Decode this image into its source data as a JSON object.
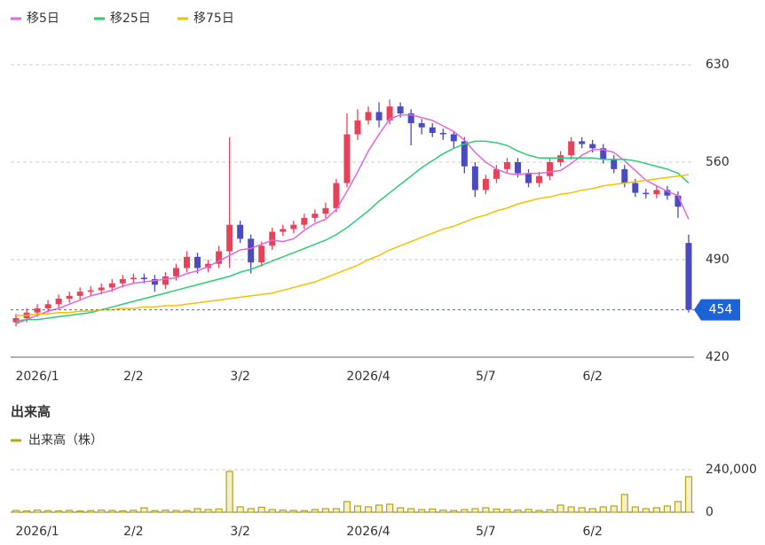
{
  "chart_data": [
    {
      "type": "candlestick",
      "categories": [
        null,
        null,
        "2026/1",
        null,
        null,
        null,
        null,
        null,
        null,
        null,
        null,
        "2/2",
        null,
        null,
        null,
        null,
        null,
        null,
        null,
        null,
        null,
        "3/2",
        null,
        null,
        null,
        null,
        null,
        null,
        null,
        null,
        null,
        null,
        null,
        "2026/4",
        null,
        null,
        null,
        null,
        null,
        null,
        null,
        null,
        null,
        null,
        "5/7",
        null,
        null,
        null,
        null,
        null,
        null,
        null,
        null,
        null,
        "6/2",
        null,
        null,
        null,
        null,
        null,
        null,
        null,
        null,
        null
      ],
      "open": [
        445,
        448,
        452,
        455,
        458,
        462,
        464,
        467,
        468,
        470,
        473,
        476,
        477,
        476,
        472,
        478,
        484,
        492,
        484,
        487,
        496,
        515,
        505,
        488,
        500,
        510,
        512,
        515,
        520,
        523,
        527,
        545,
        580,
        590,
        596,
        590,
        600,
        595,
        588,
        585,
        581,
        580,
        575,
        557,
        540,
        548,
        555,
        560,
        552,
        545,
        550,
        560,
        565,
        575,
        573,
        570,
        562,
        555,
        545,
        538,
        537,
        540,
        536,
        502
      ],
      "high": [
        451,
        455,
        458,
        461,
        465,
        467,
        470,
        471,
        473,
        476,
        479,
        480,
        480,
        479,
        481,
        487,
        496,
        495,
        490,
        500,
        578,
        518,
        508,
        503,
        513,
        515,
        518,
        523,
        526,
        531,
        548,
        595,
        598,
        600,
        603,
        605,
        603,
        598,
        591,
        588,
        584,
        582,
        578,
        560,
        551,
        558,
        563,
        563,
        555,
        553,
        563,
        568,
        578,
        578,
        576,
        573,
        565,
        558,
        548,
        541,
        543,
        543,
        539,
        508
      ],
      "low": [
        442,
        445,
        449,
        452,
        455,
        459,
        461,
        464,
        465,
        467,
        470,
        473,
        473,
        467,
        469,
        475,
        481,
        480,
        481,
        484,
        484,
        502,
        480,
        485,
        497,
        507,
        509,
        512,
        517,
        520,
        524,
        542,
        576,
        587,
        585,
        587,
        592,
        572,
        580,
        578,
        576,
        570,
        552,
        535,
        537,
        545,
        552,
        549,
        542,
        542,
        547,
        557,
        562,
        570,
        567,
        559,
        552,
        542,
        535,
        534,
        534,
        533,
        520,
        452
      ],
      "close": [
        448,
        452,
        455,
        458,
        462,
        464,
        467,
        468,
        470,
        473,
        476,
        477,
        476,
        472,
        478,
        484,
        492,
        484,
        487,
        496,
        515,
        505,
        488,
        500,
        510,
        512,
        515,
        520,
        523,
        527,
        545,
        580,
        590,
        596,
        590,
        600,
        595,
        588,
        585,
        581,
        580,
        575,
        557,
        540,
        548,
        555,
        560,
        552,
        545,
        550,
        560,
        565,
        575,
        573,
        570,
        562,
        555,
        545,
        538,
        537,
        540,
        536,
        528,
        454
      ],
      "up_color": "#e8425a",
      "down_color": "#4b4bc0",
      "series": [
        {
          "name": "移5日",
          "color": "#e066e0",
          "values": [
            444,
            447,
            450,
            453,
            455,
            458,
            461,
            464,
            466,
            468,
            471,
            473,
            474,
            475,
            476,
            477,
            480,
            482,
            485,
            489,
            493,
            497,
            498,
            501,
            504,
            503,
            505,
            511,
            516,
            519,
            526,
            539,
            553,
            568,
            580,
            591,
            594,
            594,
            592,
            590,
            586,
            582,
            576,
            567,
            560,
            555,
            552,
            551,
            552,
            552,
            553,
            554,
            559,
            565,
            569,
            569,
            567,
            561,
            554,
            547,
            543,
            539,
            536,
            519
          ]
        },
        {
          "name": "移25日",
          "color": "#2ecc71",
          "values": [
            446,
            447,
            447,
            448,
            449,
            450,
            451,
            452,
            454,
            456,
            458,
            460,
            462,
            464,
            466,
            468,
            470,
            472,
            474,
            476,
            478,
            481,
            483,
            486,
            489,
            492,
            495,
            498,
            501,
            504,
            508,
            513,
            519,
            525,
            532,
            538,
            544,
            550,
            556,
            561,
            566,
            570,
            573,
            575,
            575,
            574,
            572,
            568,
            565,
            563,
            563,
            563,
            563,
            563,
            563,
            562,
            562,
            562,
            561,
            559,
            557,
            555,
            552,
            545
          ]
        },
        {
          "name": "移75日",
          "color": "#f2c200",
          "values": [
            450,
            450,
            451,
            451,
            452,
            452,
            453,
            453,
            454,
            454,
            455,
            455,
            456,
            456,
            457,
            457,
            458,
            459,
            460,
            461,
            462,
            463,
            464,
            465,
            466,
            468,
            470,
            472,
            474,
            477,
            480,
            483,
            486,
            490,
            493,
            497,
            500,
            503,
            506,
            509,
            512,
            514,
            517,
            520,
            522,
            525,
            527,
            530,
            532,
            534,
            535,
            537,
            538,
            540,
            541,
            543,
            544,
            545,
            546,
            547,
            548,
            549,
            550,
            551
          ]
        }
      ],
      "ylim": [
        420,
        630
      ],
      "yticks": [
        420,
        490,
        560,
        630
      ],
      "grid": true
    },
    {
      "type": "bar",
      "title": "出来高",
      "categories": [
        null,
        null,
        "2026/1",
        null,
        null,
        null,
        null,
        null,
        null,
        null,
        null,
        "2/2",
        null,
        null,
        null,
        null,
        null,
        null,
        null,
        null,
        null,
        "3/2",
        null,
        null,
        null,
        null,
        null,
        null,
        null,
        null,
        null,
        null,
        null,
        "2026/4",
        null,
        null,
        null,
        null,
        null,
        null,
        null,
        null,
        null,
        null,
        "5/7",
        null,
        null,
        null,
        null,
        null,
        null,
        null,
        null,
        null,
        "6/2",
        null,
        null,
        null,
        null,
        null,
        null,
        null,
        null,
        null
      ],
      "series": [
        {
          "name": "出来高（株）",
          "color": "#b3a419",
          "values": [
            10000,
            8000,
            12000,
            9000,
            8000,
            10000,
            7000,
            9000,
            12000,
            10000,
            8000,
            11000,
            25000,
            9000,
            12000,
            10000,
            9000,
            20000,
            15000,
            18000,
            230000,
            30000,
            20000,
            28000,
            15000,
            12000,
            10000,
            9000,
            15000,
            20000,
            20000,
            60000,
            35000,
            30000,
            40000,
            45000,
            25000,
            20000,
            15000,
            18000,
            12000,
            10000,
            15000,
            20000,
            25000,
            18000,
            15000,
            12000,
            16000,
            10000,
            14000,
            40000,
            30000,
            25000,
            20000,
            30000,
            35000,
            100000,
            30000,
            20000,
            25000,
            35000,
            60000,
            200000
          ]
        }
      ],
      "ylim": [
        0,
        240000
      ],
      "yticks": [
        0,
        {
          "value": 240000,
          "label": "240,000"
        }
      ],
      "grid": true
    }
  ]
}
